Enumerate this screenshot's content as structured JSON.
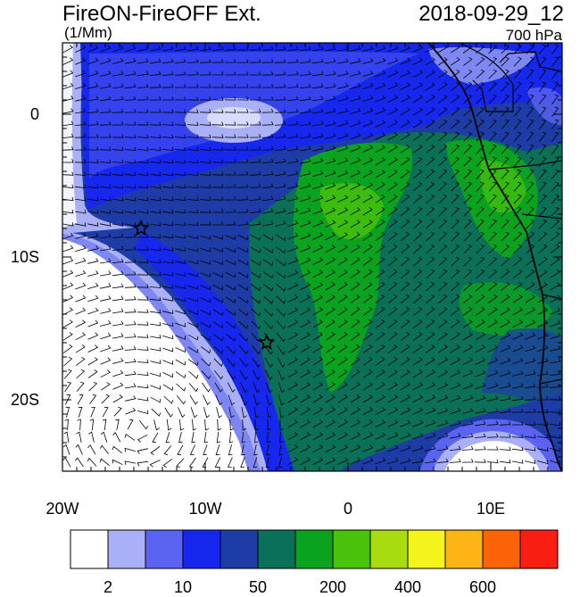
{
  "header": {
    "title_left": "FireON-FireOFF Ext.",
    "title_right": "2018-09-29_12",
    "units": "(1/Mm)",
    "level": "700 hPa"
  },
  "axes": {
    "y_labels": [
      "0",
      "10S",
      "20S"
    ],
    "x_labels": [
      "20W",
      "10W",
      "0",
      "10E"
    ]
  },
  "colorbar": {
    "colors": [
      "#ffffff",
      "#aab0f8",
      "#5a64f0",
      "#1628ee",
      "#1e3ca6",
      "#0a7058",
      "#0aa320",
      "#48c30a",
      "#a8dc10",
      "#f4f41c",
      "#fdb414",
      "#fc6208",
      "#f81e14"
    ],
    "labels": [
      "2",
      "10",
      "50",
      "200",
      "400",
      "600"
    ]
  },
  "markers": [
    {
      "name": "fire-marker-1",
      "lon": -14.5,
      "lat": -8.0
    },
    {
      "name": "fire-marker-2",
      "lon": -5.7,
      "lat": -16.0
    }
  ]
}
